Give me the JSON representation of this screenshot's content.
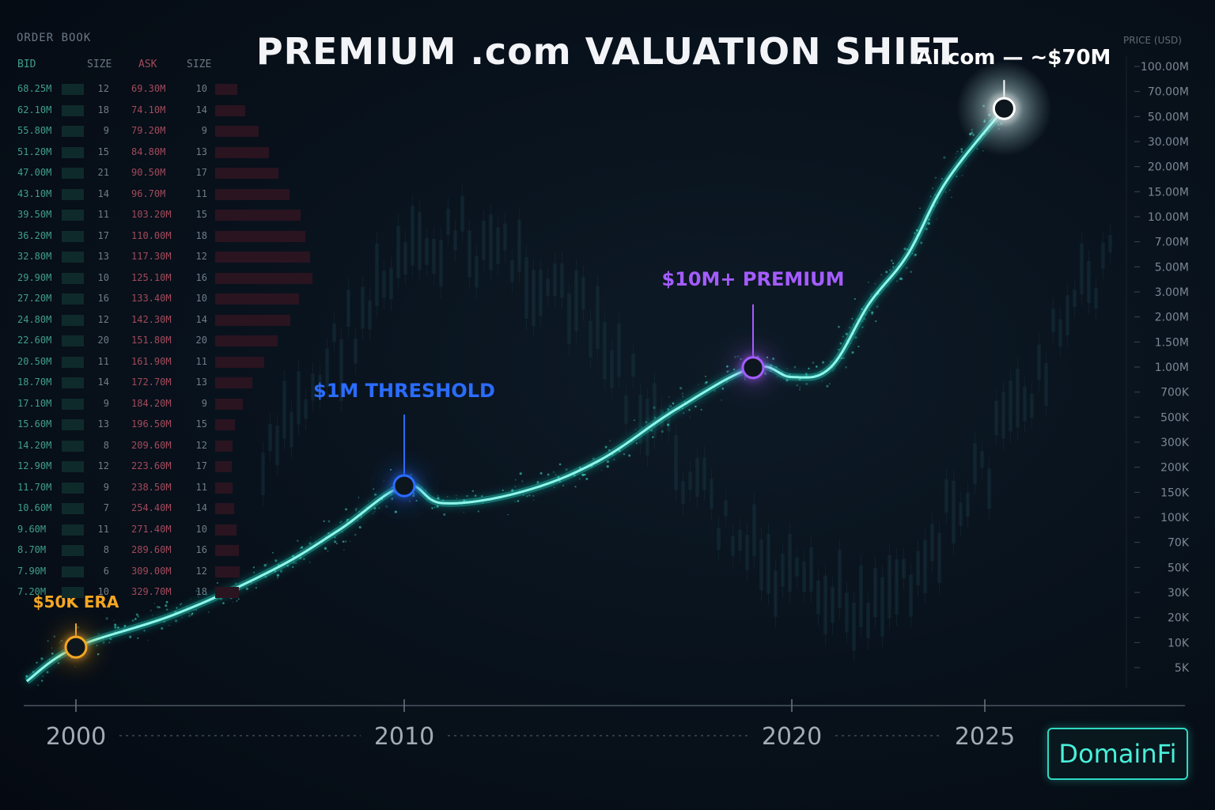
{
  "title": "PREMIUM .com VALUATION SHIFT",
  "brand": "DomainFi",
  "order_book": {
    "title": "ORDER BOOK",
    "headers": {
      "bid": "BID",
      "bid_size": "SIZE",
      "ask": "ASK",
      "ask_size": "SIZE"
    },
    "rows": [
      {
        "bid": "68.25M",
        "bid_size": "12",
        "ask": "69.30M",
        "ask_size": "10"
      },
      {
        "bid": "62.10M",
        "bid_size": "18",
        "ask": "74.10M",
        "ask_size": "14"
      },
      {
        "bid": "55.80M",
        "bid_size": "9",
        "ask": "79.20M",
        "ask_size": "9"
      },
      {
        "bid": "51.20M",
        "bid_size": "15",
        "ask": "84.80M",
        "ask_size": "13"
      },
      {
        "bid": "47.00M",
        "bid_size": "21",
        "ask": "90.50M",
        "ask_size": "17"
      },
      {
        "bid": "43.10M",
        "bid_size": "14",
        "ask": "96.70M",
        "ask_size": "11"
      },
      {
        "bid": "39.50M",
        "bid_size": "11",
        "ask": "103.20M",
        "ask_size": "15"
      },
      {
        "bid": "36.20M",
        "bid_size": "17",
        "ask": "110.00M",
        "ask_size": "18"
      },
      {
        "bid": "32.80M",
        "bid_size": "13",
        "ask": "117.30M",
        "ask_size": "12"
      },
      {
        "bid": "29.90M",
        "bid_size": "10",
        "ask": "125.10M",
        "ask_size": "16"
      },
      {
        "bid": "27.20M",
        "bid_size": "16",
        "ask": "133.40M",
        "ask_size": "10"
      },
      {
        "bid": "24.80M",
        "bid_size": "12",
        "ask": "142.30M",
        "ask_size": "14"
      },
      {
        "bid": "22.60M",
        "bid_size": "20",
        "ask": "151.80M",
        "ask_size": "20"
      },
      {
        "bid": "20.50M",
        "bid_size": "11",
        "ask": "161.90M",
        "ask_size": "11"
      },
      {
        "bid": "18.70M",
        "bid_size": "14",
        "ask": "172.70M",
        "ask_size": "13"
      },
      {
        "bid": "17.10M",
        "bid_size": "9",
        "ask": "184.20M",
        "ask_size": "9"
      },
      {
        "bid": "15.60M",
        "bid_size": "13",
        "ask": "196.50M",
        "ask_size": "15"
      },
      {
        "bid": "14.20M",
        "bid_size": "8",
        "ask": "209.60M",
        "ask_size": "12"
      },
      {
        "bid": "12.90M",
        "bid_size": "12",
        "ask": "223.60M",
        "ask_size": "17"
      },
      {
        "bid": "11.70M",
        "bid_size": "9",
        "ask": "238.50M",
        "ask_size": "11"
      },
      {
        "bid": "10.60M",
        "bid_size": "7",
        "ask": "254.40M",
        "ask_size": "14"
      },
      {
        "bid": "9.60M",
        "bid_size": "11",
        "ask": "271.40M",
        "ask_size": "10"
      },
      {
        "bid": "8.70M",
        "bid_size": "8",
        "ask": "289.60M",
        "ask_size": "16"
      },
      {
        "bid": "7.90M",
        "bid_size": "6",
        "ask": "309.00M",
        "ask_size": "12"
      },
      {
        "bid": "7.20M",
        "bid_size": "10",
        "ask": "329.70M",
        "ask_size": "18"
      }
    ]
  },
  "chart_data": {
    "type": "line",
    "title": "PREMIUM .com VALUATION SHIFT",
    "ylabel": "PRICE (USD)",
    "y_scale": "log",
    "y_ticks": [
      "100.00M",
      "70.00M",
      "50.00M",
      "30.00M",
      "20.00M",
      "15.00M",
      "10.00M",
      "7.00M",
      "5.00M",
      "3.00M",
      "2.00M",
      "1.50M",
      "1.00M",
      "700K",
      "500K",
      "300K",
      "200K",
      "150K",
      "100K",
      "70K",
      "50K",
      "30K",
      "20K",
      "10K",
      "5K"
    ],
    "x_ticks": [
      "2000",
      "2010",
      "2020",
      "2025"
    ],
    "series": [
      {
        "x": [
          1998.5,
          2000,
          2003,
          2006,
          2008,
          2010,
          2011,
          2013,
          2015,
          2017,
          2019,
          2020,
          2021,
          2022,
          2023,
          2024,
          2025.5
        ],
        "y": [
          4000,
          7000,
          12000,
          25000,
          48000,
          100000,
          75000,
          90000,
          150000,
          350000,
          700000,
          600000,
          700000,
          2000000,
          4500000,
          15000000,
          50000000
        ]
      }
    ],
    "annotations": [
      {
        "label": "$50K ERA",
        "x": 2000,
        "y": 7000,
        "color": "#f5a623"
      },
      {
        "label": "$1M THRESHOLD",
        "x": 2010,
        "y": 100000,
        "color": "#2a6cff"
      },
      {
        "label": "$10M+ PREMIUM",
        "x": 2019,
        "y": 700000,
        "color": "#a45cff"
      },
      {
        "label": "AI.com — ~$70M",
        "x": 2025.5,
        "y": 50000000,
        "color": "#ffffff"
      }
    ]
  }
}
